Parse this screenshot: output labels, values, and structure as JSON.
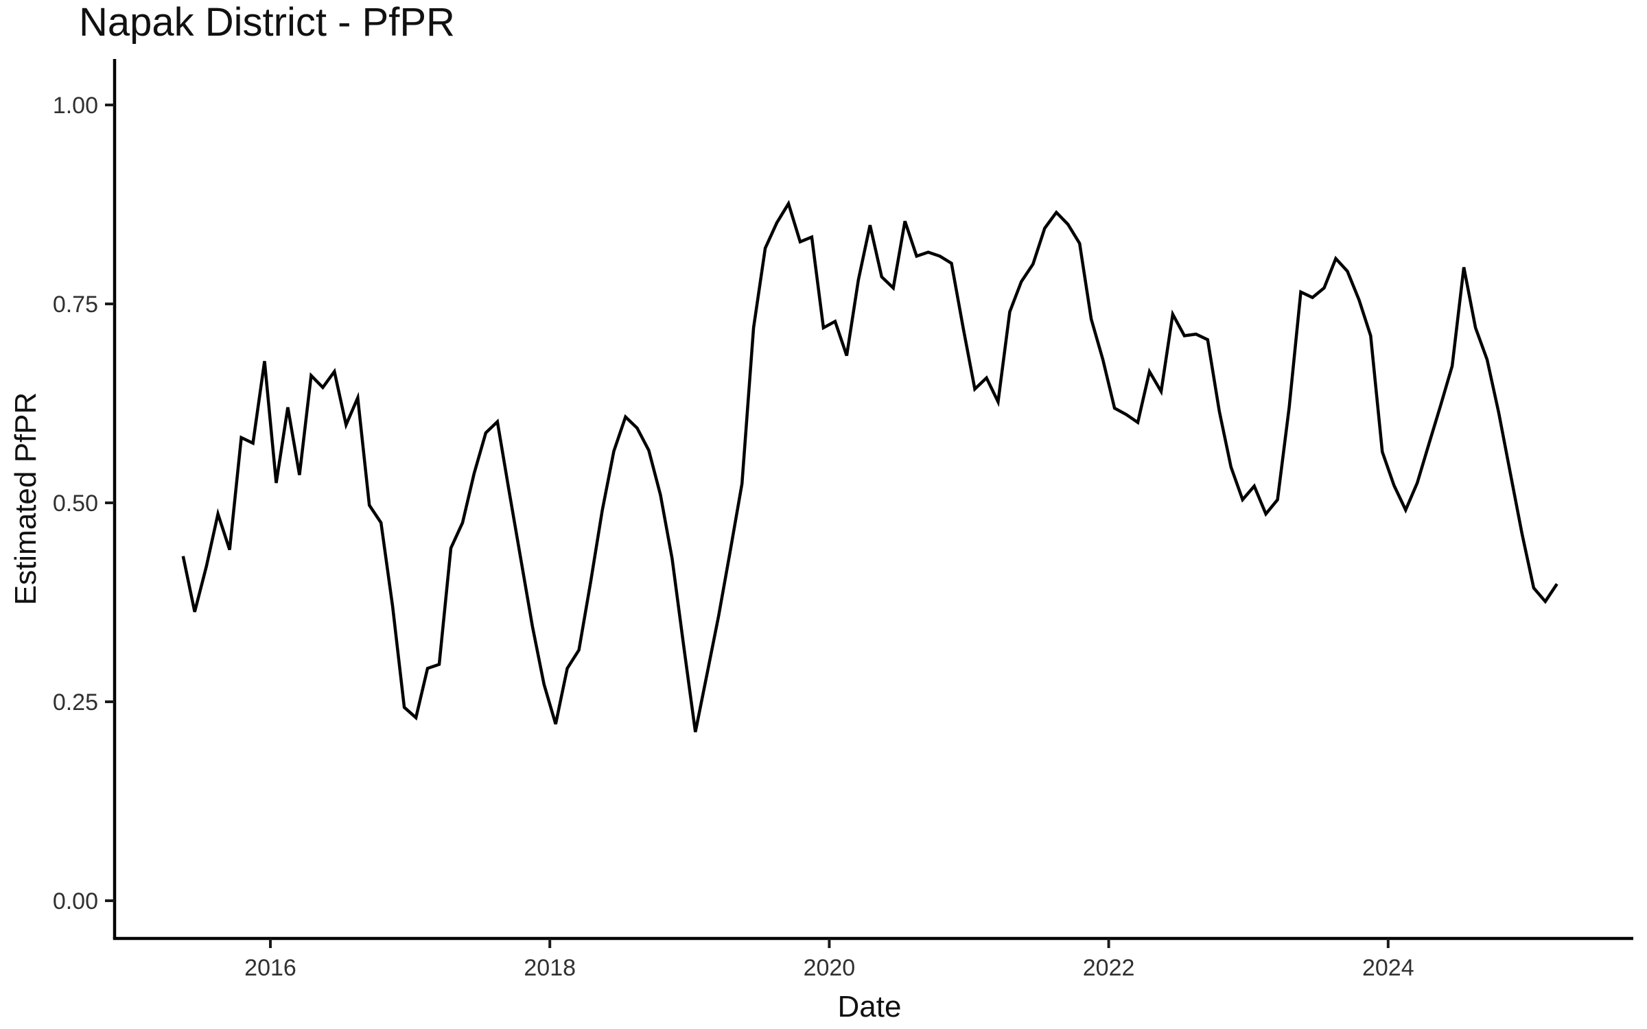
{
  "page": {
    "background_color": "#ffffff"
  },
  "chart_data": {
    "type": "line",
    "title": "Napak District - PfPR",
    "xlabel": "Date",
    "ylabel": "Estimated PfPR",
    "grid": false,
    "legend": "none",
    "line_color": "#000000",
    "ylim": [
      0,
      1
    ],
    "y_ticks": [
      {
        "label": "0.00",
        "value": 0.0
      },
      {
        "label": "0.25",
        "value": 0.25
      },
      {
        "label": "0.50",
        "value": 0.5
      },
      {
        "label": "0.75",
        "value": 0.75
      },
      {
        "label": "1.00",
        "value": 1.0
      }
    ],
    "x_ticks": [
      {
        "label": "2016",
        "value": 2016
      },
      {
        "label": "2018",
        "value": 2018
      },
      {
        "label": "2020",
        "value": 2020
      },
      {
        "label": "2022",
        "value": 2022
      },
      {
        "label": "2024",
        "value": 2024
      }
    ],
    "series": [
      {
        "name": "Estimated PfPR",
        "dates": [
          "2015-05",
          "2015-06",
          "2015-07",
          "2015-08",
          "2015-09",
          "2015-10",
          "2015-11",
          "2015-12",
          "2016-01",
          "2016-02",
          "2016-03",
          "2016-04",
          "2016-05",
          "2016-06",
          "2016-07",
          "2016-08",
          "2016-09",
          "2016-10",
          "2016-11",
          "2016-12",
          "2017-01",
          "2017-02",
          "2017-03",
          "2017-04",
          "2017-05",
          "2017-06",
          "2017-07",
          "2017-08",
          "2017-09",
          "2017-10",
          "2017-11",
          "2017-12",
          "2018-01",
          "2018-02",
          "2018-03",
          "2018-04",
          "2018-05",
          "2018-06",
          "2018-07",
          "2018-08",
          "2018-09",
          "2018-10",
          "2018-11",
          "2018-12",
          "2019-01",
          "2019-02",
          "2019-03",
          "2019-04",
          "2019-05",
          "2019-06",
          "2019-07",
          "2019-08",
          "2019-09",
          "2019-10",
          "2019-11",
          "2019-12",
          "2020-01",
          "2020-02",
          "2020-03",
          "2020-04",
          "2020-05",
          "2020-06",
          "2020-07",
          "2020-08",
          "2020-09",
          "2020-10",
          "2020-11",
          "2020-12",
          "2021-01",
          "2021-02",
          "2021-03",
          "2021-04",
          "2021-05",
          "2021-06",
          "2021-07",
          "2021-08",
          "2021-09",
          "2021-10",
          "2021-11",
          "2021-12",
          "2022-01",
          "2022-02",
          "2022-03",
          "2022-04",
          "2022-05",
          "2022-06",
          "2022-07",
          "2022-08",
          "2022-09",
          "2022-10",
          "2022-11",
          "2022-12",
          "2023-01",
          "2023-02",
          "2023-03",
          "2023-04",
          "2023-05",
          "2023-06",
          "2023-07",
          "2023-08",
          "2023-09",
          "2023-10",
          "2023-11",
          "2023-12",
          "2024-01",
          "2024-02",
          "2024-03",
          "2024-04",
          "2024-05",
          "2024-06",
          "2024-07",
          "2024-08",
          "2024-09",
          "2024-10",
          "2024-11",
          "2024-12",
          "2025-01",
          "2025-02",
          "2025-03"
        ],
        "values": [
          0.433,
          0.363,
          0.42,
          0.486,
          0.441,
          0.582,
          0.575,
          0.678,
          0.525,
          0.62,
          0.535,
          0.66,
          0.645,
          0.665,
          0.598,
          0.632,
          0.497,
          0.475,
          0.37,
          0.243,
          0.23,
          0.292,
          0.297,
          0.443,
          0.475,
          0.537,
          0.588,
          0.602,
          0.515,
          0.43,
          0.345,
          0.272,
          0.222,
          0.292,
          0.315,
          0.4,
          0.49,
          0.565,
          0.608,
          0.594,
          0.566,
          0.51,
          0.43,
          0.32,
          0.212,
          0.285,
          0.358,
          0.44,
          0.524,
          0.72,
          0.82,
          0.852,
          0.876,
          0.828,
          0.834,
          0.72,
          0.728,
          0.685,
          0.78,
          0.849,
          0.784,
          0.77,
          0.854,
          0.81,
          0.815,
          0.81,
          0.801,
          0.72,
          0.643,
          0.657,
          0.627,
          0.74,
          0.778,
          0.8,
          0.845,
          0.865,
          0.85,
          0.826,
          0.731,
          0.68,
          0.619,
          0.611,
          0.601,
          0.665,
          0.64,
          0.737,
          0.71,
          0.712,
          0.705,
          0.615,
          0.545,
          0.504,
          0.521,
          0.486,
          0.504,
          0.62,
          0.765,
          0.758,
          0.77,
          0.807,
          0.791,
          0.755,
          0.71,
          0.564,
          0.522,
          0.491,
          0.525,
          0.574,
          0.622,
          0.672,
          0.796,
          0.72,
          0.68,
          0.613,
          0.537,
          0.461,
          0.393,
          0.376,
          0.398
        ]
      }
    ]
  }
}
